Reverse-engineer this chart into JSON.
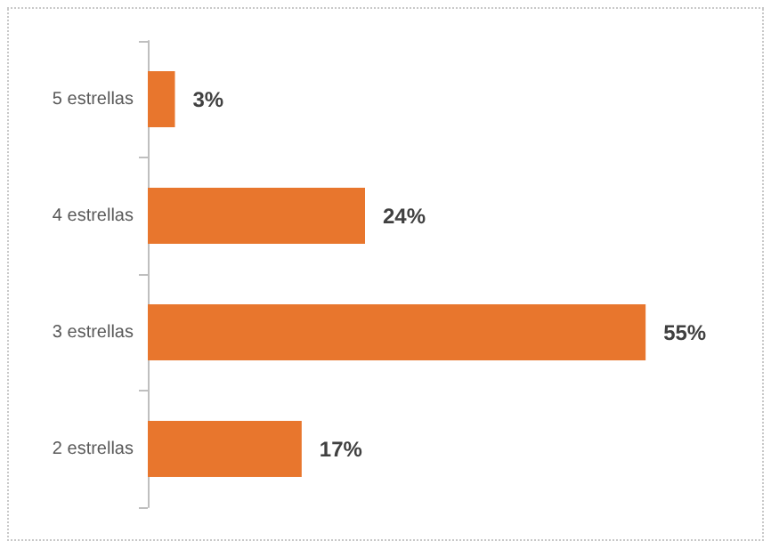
{
  "chart_data": {
    "type": "bar",
    "orientation": "horizontal",
    "categories": [
      "5 estrellas",
      "4 estrellas",
      "3 estrellas",
      "2 estrellas"
    ],
    "values": [
      3,
      24,
      55,
      17
    ],
    "value_labels": [
      "3%",
      "24%",
      "55%",
      "17%"
    ],
    "color": "#e8762d"
  }
}
